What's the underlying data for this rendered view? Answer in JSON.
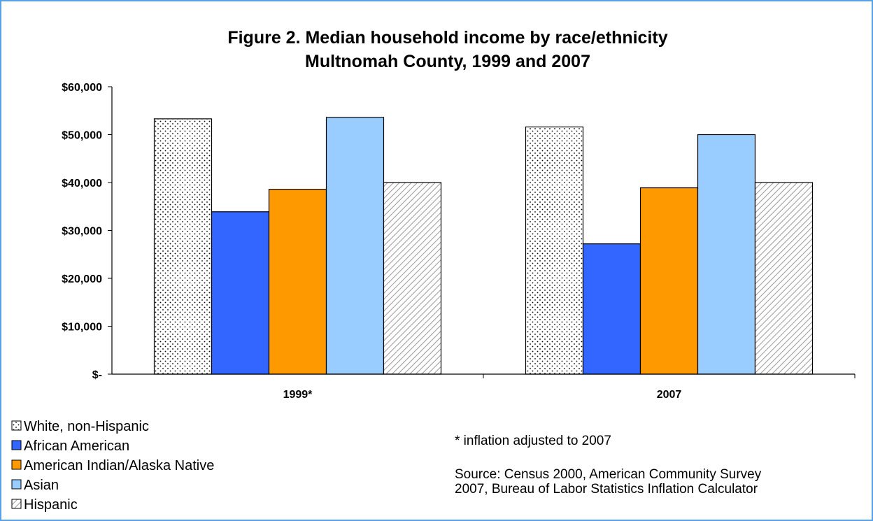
{
  "chart_data": {
    "type": "bar",
    "title": "Figure 2. Median household income by race/ethnicity",
    "subtitle": "Multnomah County, 1999 and 2007",
    "categories": [
      "1999*",
      "2007"
    ],
    "series": [
      {
        "name": "White, non-Hispanic",
        "values": [
          53300,
          51600
        ],
        "fill": "dots",
        "color": "#ffffff"
      },
      {
        "name": "African American",
        "values": [
          33900,
          27200
        ],
        "fill": "solid",
        "color": "#3366ff"
      },
      {
        "name": "American Indian/Alaska Native",
        "values": [
          38600,
          38900
        ],
        "fill": "solid",
        "color": "#ff9900"
      },
      {
        "name": "Asian",
        "values": [
          53600,
          50000
        ],
        "fill": "solid",
        "color": "#99ccff"
      },
      {
        "name": "Hispanic",
        "values": [
          40000,
          40000
        ],
        "fill": "diagonal-hatch",
        "color": "#c0c0c0"
      }
    ],
    "yticks": [
      "$-",
      "$10,000",
      "$20,000",
      "$30,000",
      "$40,000",
      "$50,000",
      "$60,000"
    ],
    "ylim": [
      0,
      60000
    ],
    "grid": false,
    "legend_position": "bottom-left",
    "notes": [
      "* inflation adjusted to 2007",
      "Source: Census 2000, American Community Survey",
      "2007, Bureau of Labor Statistics Inflation Calculator"
    ]
  }
}
